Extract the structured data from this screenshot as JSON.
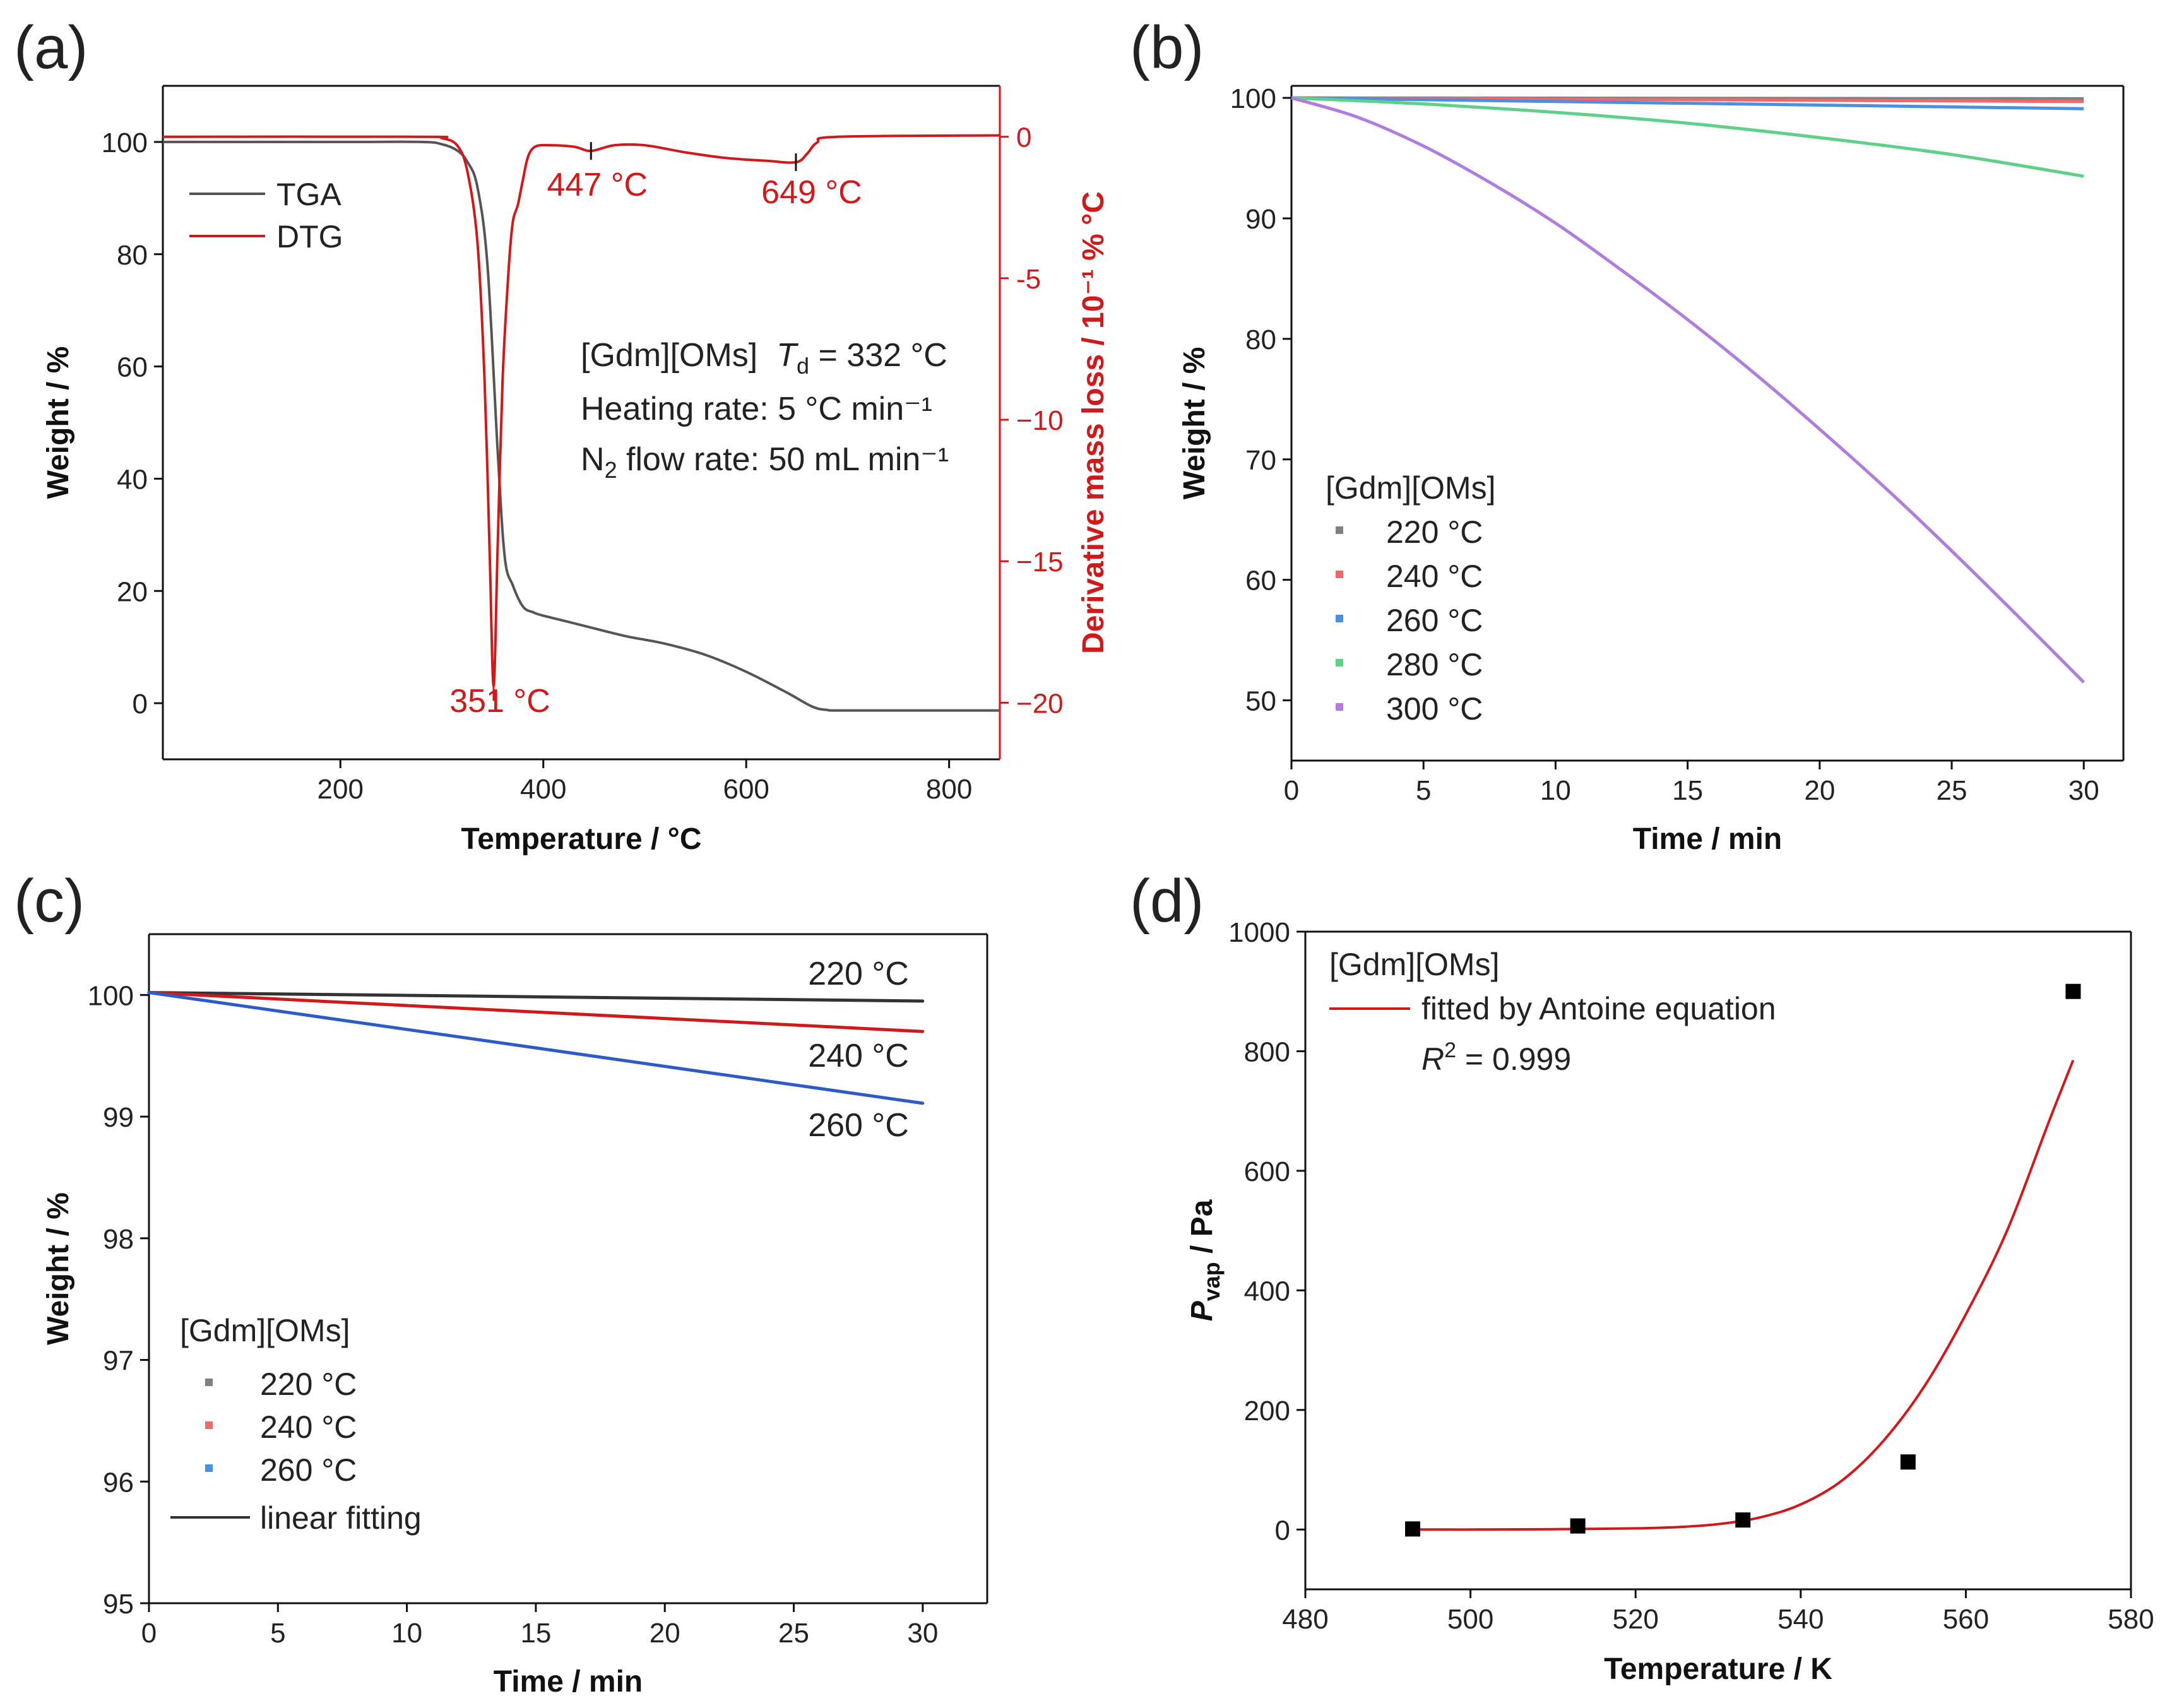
{
  "colors": {
    "axis": "#111111",
    "tga": "#555555",
    "dtg": "#d0191b",
    "t220": "#808080",
    "t240": "#ee6a6a",
    "t260": "#4a90e2",
    "t280": "#5dd08a",
    "t300": "#b07ce0",
    "fit_red": "#d0191b",
    "fit_blue": "#2a5bc6",
    "fit_black": "#333333",
    "points": "#000000"
  },
  "chart_data": [
    {
      "id": "a",
      "panel_letter": "(a)",
      "type": "line",
      "xlabel": "Temperature / °C",
      "ylabel": "Weight / %",
      "y2label": "Derivative mass loss / 10⁻¹ % °C",
      "xlim": [
        25,
        850
      ],
      "ylim": [
        -10,
        110
      ],
      "y2lim": [
        -22,
        1.8
      ],
      "xticks": [
        200,
        400,
        600,
        800
      ],
      "yticks": [
        0,
        20,
        40,
        60,
        80,
        100
      ],
      "y2ticks": [
        0,
        -5,
        -10,
        -15,
        -20
      ],
      "y2ticklabels": [
        "0",
        "-5",
        "−10",
        "−15",
        "−20"
      ],
      "legend": [
        "TGA",
        "DTG"
      ],
      "series": [
        {
          "name": "TGA",
          "axis": "left",
          "x": [
            25,
            200,
            280,
            300,
            315,
            325,
            335,
            345,
            355,
            362,
            370,
            380,
            390,
            400,
            440,
            480,
            520,
            560,
            600,
            640,
            665,
            680,
            700,
            850
          ],
          "y": [
            100,
            100,
            100,
            99.6,
            98.5,
            96.5,
            92,
            78,
            45,
            26,
            21,
            17.2,
            16.2,
            15.6,
            13.8,
            12,
            10.6,
            8.6,
            5.6,
            1.9,
            -0.6,
            -1.2,
            -1.3,
            -1.3
          ]
        },
        {
          "name": "DTG",
          "axis": "right",
          "x": [
            25,
            280,
            300,
            315,
            325,
            335,
            342,
            347,
            351,
            355,
            360,
            366,
            370,
            375,
            380,
            385,
            392,
            405,
            430,
            447,
            470,
            500,
            540,
            580,
            620,
            649,
            660,
            670,
            690,
            850
          ],
          "y": [
            0,
            0,
            -0.05,
            -0.3,
            -1.2,
            -3.7,
            -8.5,
            -14.5,
            -19.4,
            -14.5,
            -8.5,
            -4.6,
            -3.0,
            -2.4,
            -1.5,
            -0.7,
            -0.35,
            -0.3,
            -0.35,
            -0.5,
            -0.3,
            -0.3,
            -0.55,
            -0.75,
            -0.85,
            -0.9,
            -0.6,
            -0.2,
            0.0,
            0.05
          ]
        }
      ],
      "annotations": [
        {
          "text": "351 °C",
          "x": 351,
          "y": -19.4
        },
        {
          "text": "447 °C",
          "x": 447,
          "y": -0.5
        },
        {
          "text": "649 °C",
          "x": 649,
          "y": -0.9
        }
      ],
      "info": {
        "line1_prefix": "[Gdm][OMs]",
        "line1_t": "T",
        "line1_sub": "d",
        "line1_rest": " = 332 °C",
        "line2": "Heating rate: 5 °C min⁻¹",
        "line3_a": "N",
        "line3_sub": "2",
        "line3_b": " flow rate: 50 mL min⁻¹"
      }
    },
    {
      "id": "b",
      "panel_letter": "(b)",
      "type": "line",
      "xlabel": "Time / min",
      "ylabel": "Weight / %",
      "xlim": [
        0,
        31.5
      ],
      "ylim": [
        45,
        101
      ],
      "xticks": [
        0,
        5,
        10,
        15,
        20,
        25,
        30
      ],
      "yticks": [
        50,
        60,
        70,
        80,
        90,
        100
      ],
      "legend_title": "[Gdm][OMs]",
      "series": [
        {
          "name": "220 °C",
          "x": [
            0,
            10,
            20,
            30
          ],
          "y": [
            100,
            99.98,
            99.95,
            99.93
          ]
        },
        {
          "name": "240 °C",
          "x": [
            0,
            10,
            20,
            30
          ],
          "y": [
            100,
            99.9,
            99.8,
            99.7
          ]
        },
        {
          "name": "260 °C",
          "x": [
            0,
            10,
            20,
            30
          ],
          "y": [
            100,
            99.7,
            99.4,
            99.1
          ]
        },
        {
          "name": "280 °C",
          "x": [
            0,
            5,
            10,
            15,
            20,
            25,
            30
          ],
          "y": [
            100,
            99.5,
            98.8,
            97.9,
            96.7,
            95.3,
            93.5
          ]
        },
        {
          "name": "300 °C",
          "x": [
            0,
            2.5,
            5,
            7.5,
            10,
            12.5,
            15,
            17.5,
            20,
            22.5,
            25,
            27.5,
            30
          ],
          "y": [
            100,
            98.4,
            96.0,
            93.0,
            89.6,
            85.7,
            81.6,
            77.2,
            72.5,
            67.6,
            62.4,
            57.0,
            51.5
          ]
        }
      ]
    },
    {
      "id": "c",
      "panel_letter": "(c)",
      "type": "line",
      "xlabel": "Time / min",
      "ylabel": "Weight / %",
      "xlim": [
        0,
        32.5
      ],
      "ylim": [
        95,
        100.5
      ],
      "xticks": [
        0,
        5,
        10,
        15,
        20,
        25,
        30
      ],
      "yticks": [
        95,
        96,
        97,
        98,
        99,
        100
      ],
      "legend_title": "[Gdm][OMs]",
      "series": [
        {
          "name": "220 °C",
          "x": [
            0,
            30
          ],
          "y": [
            100.02,
            99.95
          ]
        },
        {
          "name": "240 °C",
          "x": [
            0,
            30
          ],
          "y": [
            100.02,
            99.7
          ]
        },
        {
          "name": "260 °C",
          "x": [
            0,
            30
          ],
          "y": [
            100.02,
            99.11
          ]
        },
        {
          "name": "linear fitting",
          "x": [
            0,
            30
          ],
          "y": [
            100.02,
            99.95
          ]
        }
      ],
      "line_labels": [
        "220 °C",
        "240 °C",
        "260 °C"
      ]
    },
    {
      "id": "d",
      "panel_letter": "(d)",
      "type": "scatter",
      "xlabel": "Temperature / K",
      "ylabel_main": "P",
      "ylabel_sub": "vap",
      "ylabel_rest": " / Pa",
      "xlim": [
        480,
        580
      ],
      "ylim": [
        -100,
        1000
      ],
      "xticks": [
        480,
        500,
        520,
        540,
        560,
        580
      ],
      "yticks": [
        0,
        200,
        400,
        600,
        800,
        1000
      ],
      "legend_title": "[Gdm][OMs]",
      "legend_fit": "fitted by Antoine equation",
      "r2_r": "R",
      "r2_sup": "2",
      "r2_rest": " = 0.999",
      "points": {
        "x": [
          493,
          513,
          533,
          553,
          573
        ],
        "y": [
          1,
          6,
          16,
          113,
          900
        ]
      },
      "fit": {
        "x": [
          493,
          500,
          510,
          520,
          525,
          530,
          535,
          540,
          545,
          550,
          555,
          560,
          565,
          570,
          573
        ],
        "y": [
          0,
          0,
          0.5,
          2,
          4,
          9,
          20,
          42,
          82,
          148,
          240,
          360,
          500,
          680,
          785
        ]
      }
    }
  ]
}
